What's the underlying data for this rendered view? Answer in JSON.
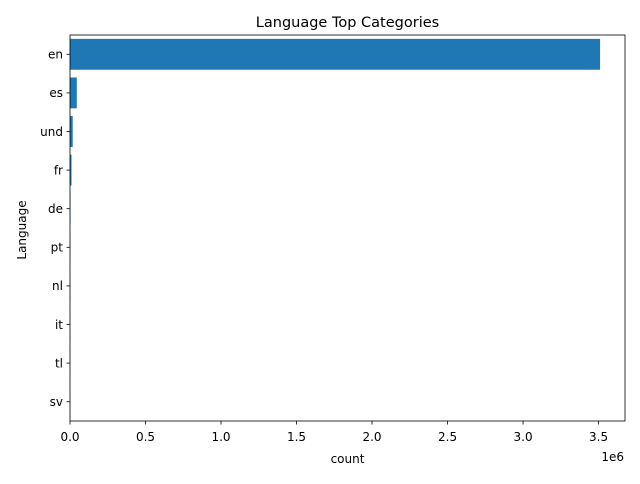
{
  "chart_data": {
    "type": "bar",
    "orientation": "horizontal",
    "title": "Language Top Categories",
    "xlabel": "count",
    "ylabel": "Language",
    "x_offset_label": "1e6",
    "x_scale": 1000000,
    "categories": [
      "en",
      "es",
      "und",
      "fr",
      "de",
      "pt",
      "nl",
      "it",
      "tl",
      "sv"
    ],
    "values": [
      3510000,
      45000,
      18000,
      10000,
      3000,
      2000,
      1500,
      1200,
      1000,
      800
    ],
    "xlim": [
      0,
      3675000
    ],
    "xticks": [
      0,
      500000,
      1000000,
      1500000,
      2000000,
      2500000,
      3000000,
      3500000
    ],
    "xtick_labels": [
      "0.0",
      "0.5",
      "1.0",
      "1.5",
      "2.0",
      "2.5",
      "3.0",
      "3.5"
    ],
    "grid": false,
    "colors": {
      "bar": "#1f77b4",
      "axis": "#000000"
    }
  }
}
